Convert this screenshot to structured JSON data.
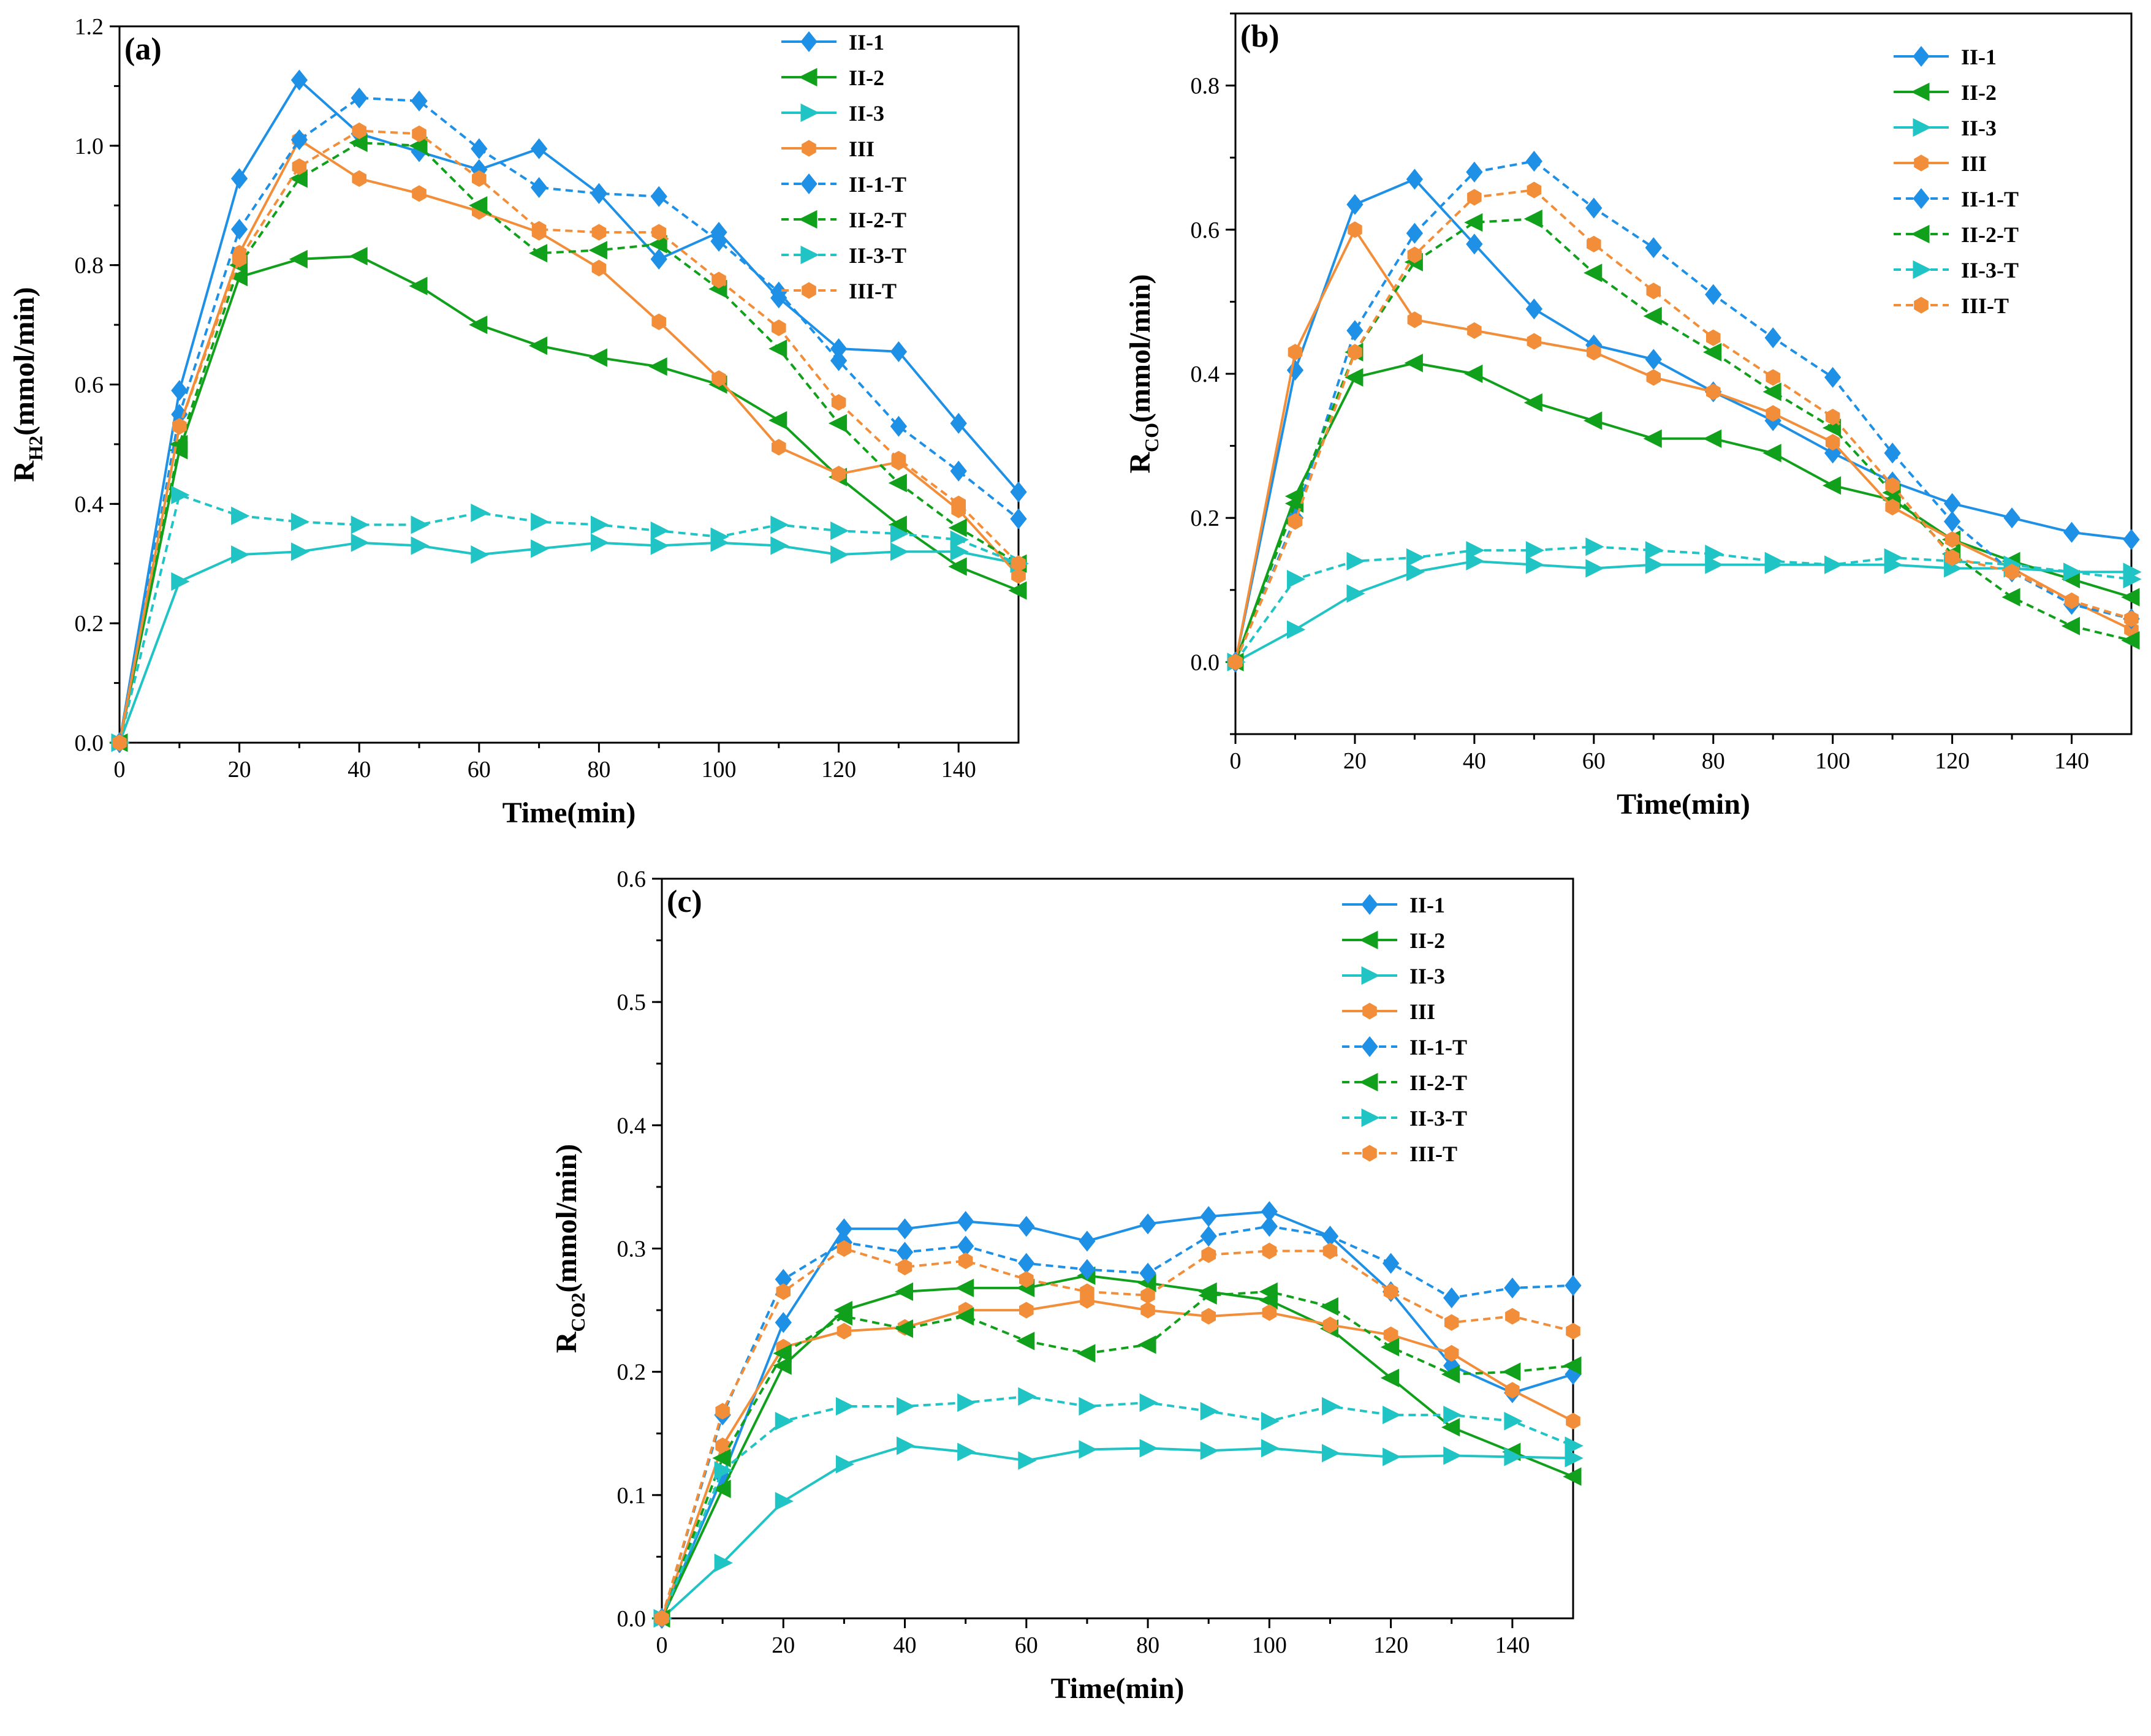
{
  "colors": {
    "II-1": "#1E90E6",
    "II-2": "#11A01B",
    "II-3": "#21C4C4",
    "III": "#F28E3A"
  },
  "markers": {
    "II-1": "diamond",
    "II-2": "triangle-left",
    "II-3": "triangle-right",
    "III": "hexagon"
  },
  "chart_data": [
    {
      "panel": "(a)",
      "type": "line",
      "xlabel": "Time(min)",
      "ylabel_main": "R",
      "ylabel_sub": "H2",
      "ylabel_tail": "(mmol/min)",
      "xlim": [
        0,
        150
      ],
      "ylim": [
        0,
        1.2
      ],
      "xticks": [
        0,
        20,
        40,
        60,
        80,
        100,
        120,
        140
      ],
      "xtick_labels": [
        "0",
        "20",
        "40",
        "60",
        "80",
        "100",
        "120",
        "140"
      ],
      "yticks": [
        0,
        0.2,
        0.4,
        0.6,
        0.8,
        1.0,
        1.2
      ],
      "ytick_labels": [
        "0.0",
        "0.2",
        "0.4",
        "0.6",
        "0.8",
        "1.0",
        "1.2"
      ],
      "legend_position": "top-right",
      "x": [
        0,
        10,
        20,
        30,
        40,
        50,
        60,
        70,
        80,
        90,
        100,
        110,
        120,
        130,
        140,
        150
      ],
      "series": [
        {
          "name": "II-1",
          "base": "II-1",
          "dashed": false,
          "values": [
            0,
            0.59,
            0.945,
            1.11,
            1.02,
            0.99,
            0.96,
            0.995,
            0.92,
            0.81,
            0.855,
            0.745,
            0.66,
            0.655,
            0.535,
            0.42
          ]
        },
        {
          "name": "II-2",
          "base": "II-2",
          "dashed": false,
          "values": [
            0,
            0.49,
            0.78,
            0.81,
            0.815,
            0.765,
            0.7,
            0.665,
            0.645,
            0.63,
            0.6,
            0.54,
            0.445,
            0.365,
            0.295,
            0.255
          ]
        },
        {
          "name": "II-3",
          "base": "II-3",
          "dashed": false,
          "values": [
            0,
            0.27,
            0.315,
            0.32,
            0.335,
            0.33,
            0.315,
            0.325,
            0.335,
            0.33,
            0.335,
            0.33,
            0.315,
            0.32,
            0.32,
            0.3
          ]
        },
        {
          "name": "III",
          "base": "III",
          "dashed": false,
          "values": [
            0,
            0.53,
            0.82,
            1.01,
            0.945,
            0.92,
            0.89,
            0.855,
            0.795,
            0.705,
            0.61,
            0.495,
            0.45,
            0.47,
            0.39,
            0.28
          ]
        },
        {
          "name": "II-1-T",
          "base": "II-1",
          "dashed": true,
          "values": [
            0,
            0.55,
            0.86,
            1.01,
            1.08,
            1.075,
            0.995,
            0.93,
            0.92,
            0.915,
            0.84,
            0.755,
            0.64,
            0.53,
            0.455,
            0.375
          ]
        },
        {
          "name": "II-2-T",
          "base": "II-2",
          "dashed": true,
          "values": [
            0,
            0.5,
            0.8,
            0.945,
            1.005,
            1.0,
            0.9,
            0.82,
            0.825,
            0.835,
            0.76,
            0.66,
            0.535,
            0.435,
            0.36,
            0.3
          ]
        },
        {
          "name": "II-3-T",
          "base": "II-3",
          "dashed": true,
          "values": [
            0,
            0.415,
            0.38,
            0.37,
            0.365,
            0.365,
            0.385,
            0.37,
            0.365,
            0.355,
            0.345,
            0.365,
            0.355,
            0.35,
            0.34,
            0.3
          ]
        },
        {
          "name": "III-T",
          "base": "III",
          "dashed": true,
          "values": [
            0,
            0.53,
            0.81,
            0.965,
            1.025,
            1.02,
            0.945,
            0.86,
            0.855,
            0.855,
            0.775,
            0.695,
            0.57,
            0.475,
            0.4,
            0.3
          ]
        }
      ]
    },
    {
      "panel": "(b)",
      "type": "line",
      "xlabel": "Time(min)",
      "ylabel_main": "R",
      "ylabel_sub": "CO",
      "ylabel_tail": "(mmol/min)",
      "xlim": [
        0,
        150
      ],
      "ylim": [
        -0.1,
        0.9
      ],
      "xticks": [
        0,
        20,
        40,
        60,
        80,
        100,
        120,
        140
      ],
      "xtick_labels": [
        "0",
        "20",
        "40",
        "60",
        "80",
        "100",
        "120",
        "140"
      ],
      "yticks": [
        0,
        0.2,
        0.4,
        0.6,
        0.8
      ],
      "ytick_labels": [
        "0.0",
        "0.2",
        "0.4",
        "0.6",
        "0.8"
      ],
      "legend_position": "top-right",
      "x": [
        0,
        10,
        20,
        30,
        40,
        50,
        60,
        70,
        80,
        90,
        100,
        110,
        120,
        130,
        140,
        150
      ],
      "series": [
        {
          "name": "II-1",
          "base": "II-1",
          "dashed": false,
          "values": [
            0,
            0.405,
            0.635,
            0.67,
            0.58,
            0.49,
            0.44,
            0.42,
            0.375,
            0.335,
            0.29,
            0.25,
            0.22,
            0.2,
            0.18,
            0.17
          ]
        },
        {
          "name": "II-2",
          "base": "II-2",
          "dashed": false,
          "values": [
            0,
            0.23,
            0.395,
            0.415,
            0.4,
            0.36,
            0.335,
            0.31,
            0.31,
            0.29,
            0.245,
            0.225,
            0.17,
            0.14,
            0.115,
            0.09
          ]
        },
        {
          "name": "II-3",
          "base": "II-3",
          "dashed": false,
          "values": [
            0,
            0.045,
            0.095,
            0.125,
            0.14,
            0.135,
            0.13,
            0.135,
            0.135,
            0.135,
            0.135,
            0.135,
            0.13,
            0.13,
            0.125,
            0.125
          ]
        },
        {
          "name": "III",
          "base": "III",
          "dashed": false,
          "values": [
            0,
            0.43,
            0.6,
            0.475,
            0.46,
            0.445,
            0.43,
            0.395,
            0.375,
            0.345,
            0.305,
            0.215,
            0.17,
            0.13,
            0.085,
            0.045
          ]
        },
        {
          "name": "II-1-T",
          "base": "II-1",
          "dashed": true,
          "values": [
            0,
            0.2,
            0.46,
            0.595,
            0.68,
            0.695,
            0.63,
            0.575,
            0.51,
            0.45,
            0.395,
            0.29,
            0.195,
            0.125,
            0.08,
            0.06
          ]
        },
        {
          "name": "II-2-T",
          "base": "II-2",
          "dashed": true,
          "values": [
            0,
            0.22,
            0.43,
            0.555,
            0.61,
            0.615,
            0.54,
            0.48,
            0.43,
            0.375,
            0.325,
            0.235,
            0.15,
            0.09,
            0.05,
            0.03
          ]
        },
        {
          "name": "II-3-T",
          "base": "II-3",
          "dashed": true,
          "values": [
            0,
            0.115,
            0.14,
            0.145,
            0.155,
            0.155,
            0.16,
            0.155,
            0.15,
            0.14,
            0.135,
            0.145,
            0.14,
            0.135,
            0.125,
            0.115
          ]
        },
        {
          "name": "III-T",
          "base": "III",
          "dashed": true,
          "values": [
            0,
            0.195,
            0.43,
            0.565,
            0.645,
            0.655,
            0.58,
            0.515,
            0.45,
            0.395,
            0.34,
            0.245,
            0.145,
            0.125,
            0.085,
            0.06
          ]
        }
      ]
    },
    {
      "panel": "(c)",
      "type": "line",
      "xlabel": "Time(min)",
      "ylabel_main": "R",
      "ylabel_sub": "CO2",
      "ylabel_tail": "(mmol/min)",
      "xlim": [
        0,
        150
      ],
      "ylim": [
        0,
        0.6
      ],
      "xticks": [
        0,
        20,
        40,
        60,
        80,
        100,
        120,
        140
      ],
      "xtick_labels": [
        "0",
        "20",
        "40",
        "60",
        "80",
        "100",
        "120",
        "140"
      ],
      "yticks": [
        0,
        0.1,
        0.2,
        0.3,
        0.4,
        0.5,
        0.6
      ],
      "ytick_labels": [
        "0.0",
        "0.1",
        "0.2",
        "0.3",
        "0.4",
        "0.5",
        "0.6"
      ],
      "legend_position": "top-right",
      "x": [
        0,
        10,
        20,
        30,
        40,
        50,
        60,
        70,
        80,
        90,
        100,
        110,
        120,
        130,
        140,
        150
      ],
      "series": [
        {
          "name": "II-1",
          "base": "II-1",
          "dashed": false,
          "values": [
            0,
            0.115,
            0.24,
            0.316,
            0.316,
            0.322,
            0.318,
            0.306,
            0.32,
            0.326,
            0.33,
            0.31,
            0.265,
            0.205,
            0.183,
            0.198
          ]
        },
        {
          "name": "II-2",
          "base": "II-2",
          "dashed": false,
          "values": [
            0,
            0.105,
            0.205,
            0.25,
            0.265,
            0.268,
            0.268,
            0.278,
            0.272,
            0.265,
            0.258,
            0.235,
            0.195,
            0.155,
            0.135,
            0.115
          ]
        },
        {
          "name": "II-3",
          "base": "II-3",
          "dashed": false,
          "values": [
            0,
            0.045,
            0.095,
            0.125,
            0.14,
            0.135,
            0.128,
            0.137,
            0.138,
            0.136,
            0.138,
            0.134,
            0.131,
            0.132,
            0.131,
            0.13
          ]
        },
        {
          "name": "III",
          "base": "III",
          "dashed": false,
          "values": [
            0,
            0.14,
            0.22,
            0.233,
            0.236,
            0.25,
            0.25,
            0.258,
            0.25,
            0.245,
            0.248,
            0.238,
            0.23,
            0.215,
            0.185,
            0.16
          ]
        },
        {
          "name": "II-1-T",
          "base": "II-1",
          "dashed": true,
          "values": [
            0,
            0.165,
            0.275,
            0.305,
            0.297,
            0.302,
            0.288,
            0.283,
            0.28,
            0.31,
            0.318,
            0.31,
            0.288,
            0.26,
            0.268,
            0.27
          ]
        },
        {
          "name": "II-2-T",
          "base": "II-2",
          "dashed": true,
          "values": [
            0,
            0.13,
            0.215,
            0.245,
            0.235,
            0.245,
            0.225,
            0.215,
            0.222,
            0.262,
            0.265,
            0.253,
            0.22,
            0.198,
            0.2,
            0.205
          ]
        },
        {
          "name": "II-3-T",
          "base": "II-3",
          "dashed": true,
          "values": [
            0,
            0.12,
            0.16,
            0.172,
            0.172,
            0.175,
            0.18,
            0.172,
            0.175,
            0.168,
            0.16,
            0.172,
            0.165,
            0.165,
            0.16,
            0.14
          ]
        },
        {
          "name": "III-T",
          "base": "III",
          "dashed": true,
          "values": [
            0,
            0.168,
            0.265,
            0.3,
            0.285,
            0.29,
            0.275,
            0.265,
            0.262,
            0.295,
            0.298,
            0.298,
            0.265,
            0.24,
            0.245,
            0.233
          ]
        }
      ]
    }
  ]
}
